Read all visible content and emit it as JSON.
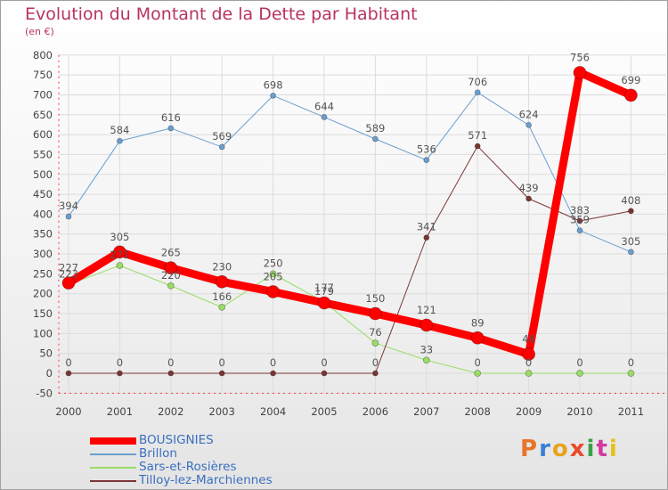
{
  "title": "Evolution du Montant de la Dette par Habitant",
  "subtitle": "(en €)",
  "logo": [
    "P",
    "r",
    "o",
    "x",
    "i",
    "t",
    "i"
  ],
  "logo_colors": [
    "#e8742a",
    "#3a7fd2",
    "#e8a31c",
    "#e84a2a",
    "#3aa04a",
    "#d23aa0",
    "#e8c01c"
  ],
  "chart_data": {
    "type": "line",
    "title": "Evolution du Montant de la Dette par Habitant",
    "ylabel": "(en €)",
    "xlabel": "",
    "categories": [
      "2000",
      "2001",
      "2002",
      "2003",
      "2004",
      "2005",
      "2006",
      "2007",
      "2008",
      "2009",
      "2010",
      "2011"
    ],
    "ylim": [
      -50,
      800
    ],
    "yticks": [
      "-50",
      "0",
      "50",
      "100",
      "150",
      "200",
      "250",
      "300",
      "350",
      "400",
      "450",
      "500",
      "550",
      "600",
      "650",
      "700",
      "750",
      "800"
    ],
    "grid": true,
    "legend_position": "bottom-left",
    "series": [
      {
        "name": "BOUSIGNIES",
        "color": "#ff0000",
        "values": [
          227,
          305,
          265,
          230,
          205,
          177,
          150,
          121,
          89,
          48,
          756,
          699
        ],
        "labels": [
          "227",
          "305",
          "265",
          "230",
          "205",
          "177",
          "150",
          "121",
          "89",
          "48",
          "756",
          "699"
        ]
      },
      {
        "name": "Brillon",
        "color": "#6b9fd0",
        "values": [
          394,
          584,
          616,
          569,
          698,
          644,
          589,
          536,
          706,
          624,
          359,
          305
        ],
        "labels": [
          "394",
          "584",
          "616",
          "569",
          "698",
          "644",
          "589",
          "536",
          "706",
          "624",
          "359",
          "305"
        ]
      },
      {
        "name": "Sars-et-Rosières",
        "color": "#99dd66",
        "values": [
          223,
          271,
          220,
          166,
          250,
          179,
          76,
          33,
          0,
          0,
          0,
          0
        ],
        "labels": [
          "223",
          "271",
          "220",
          "166",
          "250",
          "179",
          "76",
          "33",
          "0",
          "0",
          "0",
          "0"
        ]
      },
      {
        "name": "Tilloy-lez-Marchiennes",
        "color": "#7a3535",
        "values": [
          0,
          0,
          0,
          0,
          0,
          0,
          0,
          341,
          571,
          439,
          383,
          408
        ],
        "labels": [
          "0",
          "0",
          "0",
          "0",
          "0",
          "0",
          "0",
          "341",
          "571",
          "439",
          "383",
          "408"
        ]
      }
    ]
  }
}
